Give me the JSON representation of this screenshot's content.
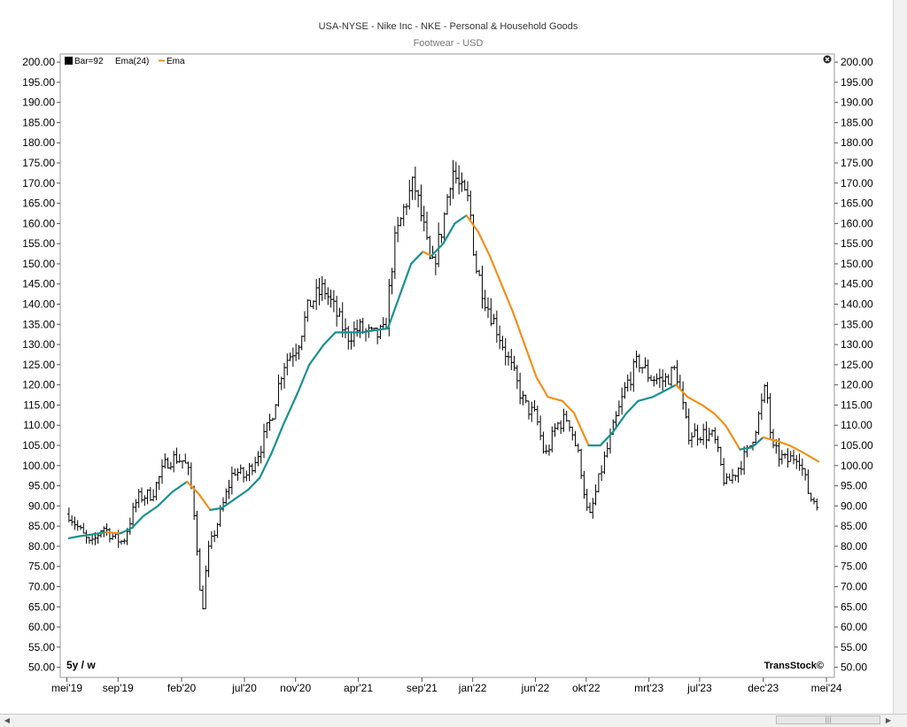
{
  "chart_data": {
    "type": "line",
    "title": "USA-NYSE - Nike Inc - NKE - Personal & Household Goods",
    "subtitle": "Footwear - USD",
    "legend": {
      "bar_label": "Bar=92",
      "ema_label": "Ema(24)",
      "ema_name": "Ema"
    },
    "period_label": "5y / w",
    "watermark": "TransStock©",
    "y_ticks": [
      "200.00",
      "195.00",
      "190.00",
      "185.00",
      "180.00",
      "175.00",
      "170.00",
      "165.00",
      "160.00",
      "155.00",
      "150.00",
      "145.00",
      "140.00",
      "135.00",
      "130.00",
      "125.00",
      "120.00",
      "115.00",
      "110.00",
      "105.00",
      "100.00",
      "95.00",
      "90.00",
      "85.00",
      "80.00",
      "75.00",
      "70.00",
      "65.00",
      "60.00",
      "55.00",
      "50.00"
    ],
    "ylim": [
      47.5,
      202
    ],
    "x_ticks": [
      {
        "label": "mei'19",
        "date": "2019-05-01"
      },
      {
        "label": "sep'19",
        "date": "2019-09-01"
      },
      {
        "label": "feb'20",
        "date": "2020-02-01"
      },
      {
        "label": "jul'20",
        "date": "2020-07-01"
      },
      {
        "label": "nov'20",
        "date": "2020-11-01"
      },
      {
        "label": "apr'21",
        "date": "2021-04-01"
      },
      {
        "label": "sep'21",
        "date": "2021-09-01"
      },
      {
        "label": "jan'22",
        "date": "2022-01-01"
      },
      {
        "label": "jun'22",
        "date": "2022-06-01"
      },
      {
        "label": "okt'22",
        "date": "2022-10-01"
      },
      {
        "label": "mrt'23",
        "date": "2023-03-01"
      },
      {
        "label": "jul'23",
        "date": "2023-07-01"
      },
      {
        "label": "dec'23",
        "date": "2023-12-01"
      },
      {
        "label": "mei'24",
        "date": "2024-05-01"
      }
    ],
    "xlim": [
      "2019-04-15",
      "2024-05-20"
    ],
    "colors": {
      "ema_rising": "#1a9090",
      "ema_falling": "#f0901a",
      "bars": "#000000"
    },
    "price_path": [
      [
        "2019-05-06",
        88
      ],
      [
        "2019-06-01",
        84
      ],
      [
        "2019-06-28",
        80
      ],
      [
        "2019-07-26",
        85
      ],
      [
        "2019-08-23",
        82
      ],
      [
        "2019-09-13",
        81
      ],
      [
        "2019-10-18",
        92
      ],
      [
        "2019-11-22",
        93
      ],
      [
        "2019-12-27",
        101
      ],
      [
        "2020-01-17",
        102
      ],
      [
        "2020-02-07",
        101
      ],
      [
        "2020-02-21",
        97
      ],
      [
        "2020-03-06",
        85
      ],
      [
        "2020-03-20",
        62
      ],
      [
        "2020-04-03",
        78
      ],
      [
        "2020-05-01",
        87
      ],
      [
        "2020-06-05",
        99
      ],
      [
        "2020-07-03",
        97
      ],
      [
        "2020-08-07",
        104
      ],
      [
        "2020-09-04",
        112
      ],
      [
        "2020-10-02",
        125
      ],
      [
        "2020-11-06",
        130
      ],
      [
        "2020-12-04",
        140
      ],
      [
        "2021-01-08",
        144
      ],
      [
        "2021-02-05",
        138
      ],
      [
        "2021-03-05",
        132
      ],
      [
        "2021-04-02",
        134
      ],
      [
        "2021-05-07",
        132
      ],
      [
        "2021-06-04",
        133
      ],
      [
        "2021-06-25",
        154
      ],
      [
        "2021-07-23",
        165
      ],
      [
        "2021-08-13",
        170
      ],
      [
        "2021-09-03",
        160
      ],
      [
        "2021-09-24",
        148
      ],
      [
        "2021-10-22",
        160
      ],
      [
        "2021-11-12",
        174
      ],
      [
        "2021-12-03",
        168
      ],
      [
        "2021-12-24",
        165
      ],
      [
        "2022-01-07",
        150
      ],
      [
        "2022-02-04",
        140
      ],
      [
        "2022-03-04",
        133
      ],
      [
        "2022-04-01",
        125
      ],
      [
        "2022-05-06",
        115
      ],
      [
        "2022-06-03",
        112
      ],
      [
        "2022-06-24",
        102
      ],
      [
        "2022-07-22",
        110
      ],
      [
        "2022-08-19",
        112
      ],
      [
        "2022-09-16",
        101
      ],
      [
        "2022-10-07",
        86
      ],
      [
        "2022-11-04",
        98
      ],
      [
        "2022-12-02",
        108
      ],
      [
        "2023-01-06",
        120
      ],
      [
        "2023-02-03",
        126
      ],
      [
        "2023-03-03",
        122
      ],
      [
        "2023-04-07",
        121
      ],
      [
        "2023-05-05",
        124
      ],
      [
        "2023-06-02",
        108
      ],
      [
        "2023-07-07",
        108
      ],
      [
        "2023-08-04",
        107
      ],
      [
        "2023-09-01",
        95
      ],
      [
        "2023-09-29",
        99
      ],
      [
        "2023-10-27",
        104
      ],
      [
        "2023-11-17",
        111
      ],
      [
        "2023-12-08",
        120
      ],
      [
        "2023-12-22",
        104
      ],
      [
        "2024-01-26",
        101
      ],
      [
        "2024-02-23",
        103
      ],
      [
        "2024-03-22",
        92
      ],
      [
        "2024-04-12",
        91
      ]
    ],
    "ema": [
      [
        "2019-05-06",
        82
      ],
      [
        "2019-06-01",
        82.5
      ],
      [
        "2019-07-05",
        83
      ],
      [
        "2019-08-02",
        83.5
      ],
      [
        "2019-09-06",
        83.2
      ],
      [
        "2019-10-04",
        84.5
      ],
      [
        "2019-11-01",
        87.5
      ],
      [
        "2019-12-06",
        90
      ],
      [
        "2020-01-10",
        93.5
      ],
      [
        "2020-02-14",
        96
      ],
      [
        "2020-03-13",
        93
      ],
      [
        "2020-04-10",
        89
      ],
      [
        "2020-05-08",
        89.5
      ],
      [
        "2020-06-05",
        91.5
      ],
      [
        "2020-07-10",
        94
      ],
      [
        "2020-08-07",
        97
      ],
      [
        "2020-09-04",
        103
      ],
      [
        "2020-10-02",
        110
      ],
      [
        "2020-11-06",
        118
      ],
      [
        "2020-12-04",
        125
      ],
      [
        "2021-01-08",
        130
      ],
      [
        "2021-02-05",
        133
      ],
      [
        "2021-03-05",
        133
      ],
      [
        "2021-04-09",
        133
      ],
      [
        "2021-05-07",
        133.5
      ],
      [
        "2021-06-11",
        134
      ],
      [
        "2021-07-09",
        142
      ],
      [
        "2021-08-06",
        150
      ],
      [
        "2021-09-03",
        153
      ],
      [
        "2021-09-24",
        152
      ],
      [
        "2021-10-22",
        155
      ],
      [
        "2021-11-19",
        160
      ],
      [
        "2021-12-17",
        162
      ],
      [
        "2022-01-14",
        158
      ],
      [
        "2022-02-11",
        152
      ],
      [
        "2022-03-11",
        145
      ],
      [
        "2022-04-08",
        138
      ],
      [
        "2022-05-06",
        130
      ],
      [
        "2022-06-03",
        122
      ],
      [
        "2022-07-01",
        117
      ],
      [
        "2022-08-05",
        116
      ],
      [
        "2022-09-02",
        113
      ],
      [
        "2022-10-07",
        105
      ],
      [
        "2022-11-04",
        105
      ],
      [
        "2022-12-02",
        108
      ],
      [
        "2023-01-06",
        113
      ],
      [
        "2023-02-03",
        116
      ],
      [
        "2023-03-10",
        117
      ],
      [
        "2023-04-07",
        118.5
      ],
      [
        "2023-05-05",
        120
      ],
      [
        "2023-06-02",
        117
      ],
      [
        "2023-07-07",
        115
      ],
      [
        "2023-08-04",
        113
      ],
      [
        "2023-09-01",
        110
      ],
      [
        "2023-10-06",
        104
      ],
      [
        "2023-11-03",
        104.5
      ],
      [
        "2023-12-01",
        107
      ],
      [
        "2024-01-05",
        106
      ],
      [
        "2024-02-02",
        105
      ],
      [
        "2024-03-01",
        103.5
      ],
      [
        "2024-04-12",
        101
      ]
    ]
  }
}
